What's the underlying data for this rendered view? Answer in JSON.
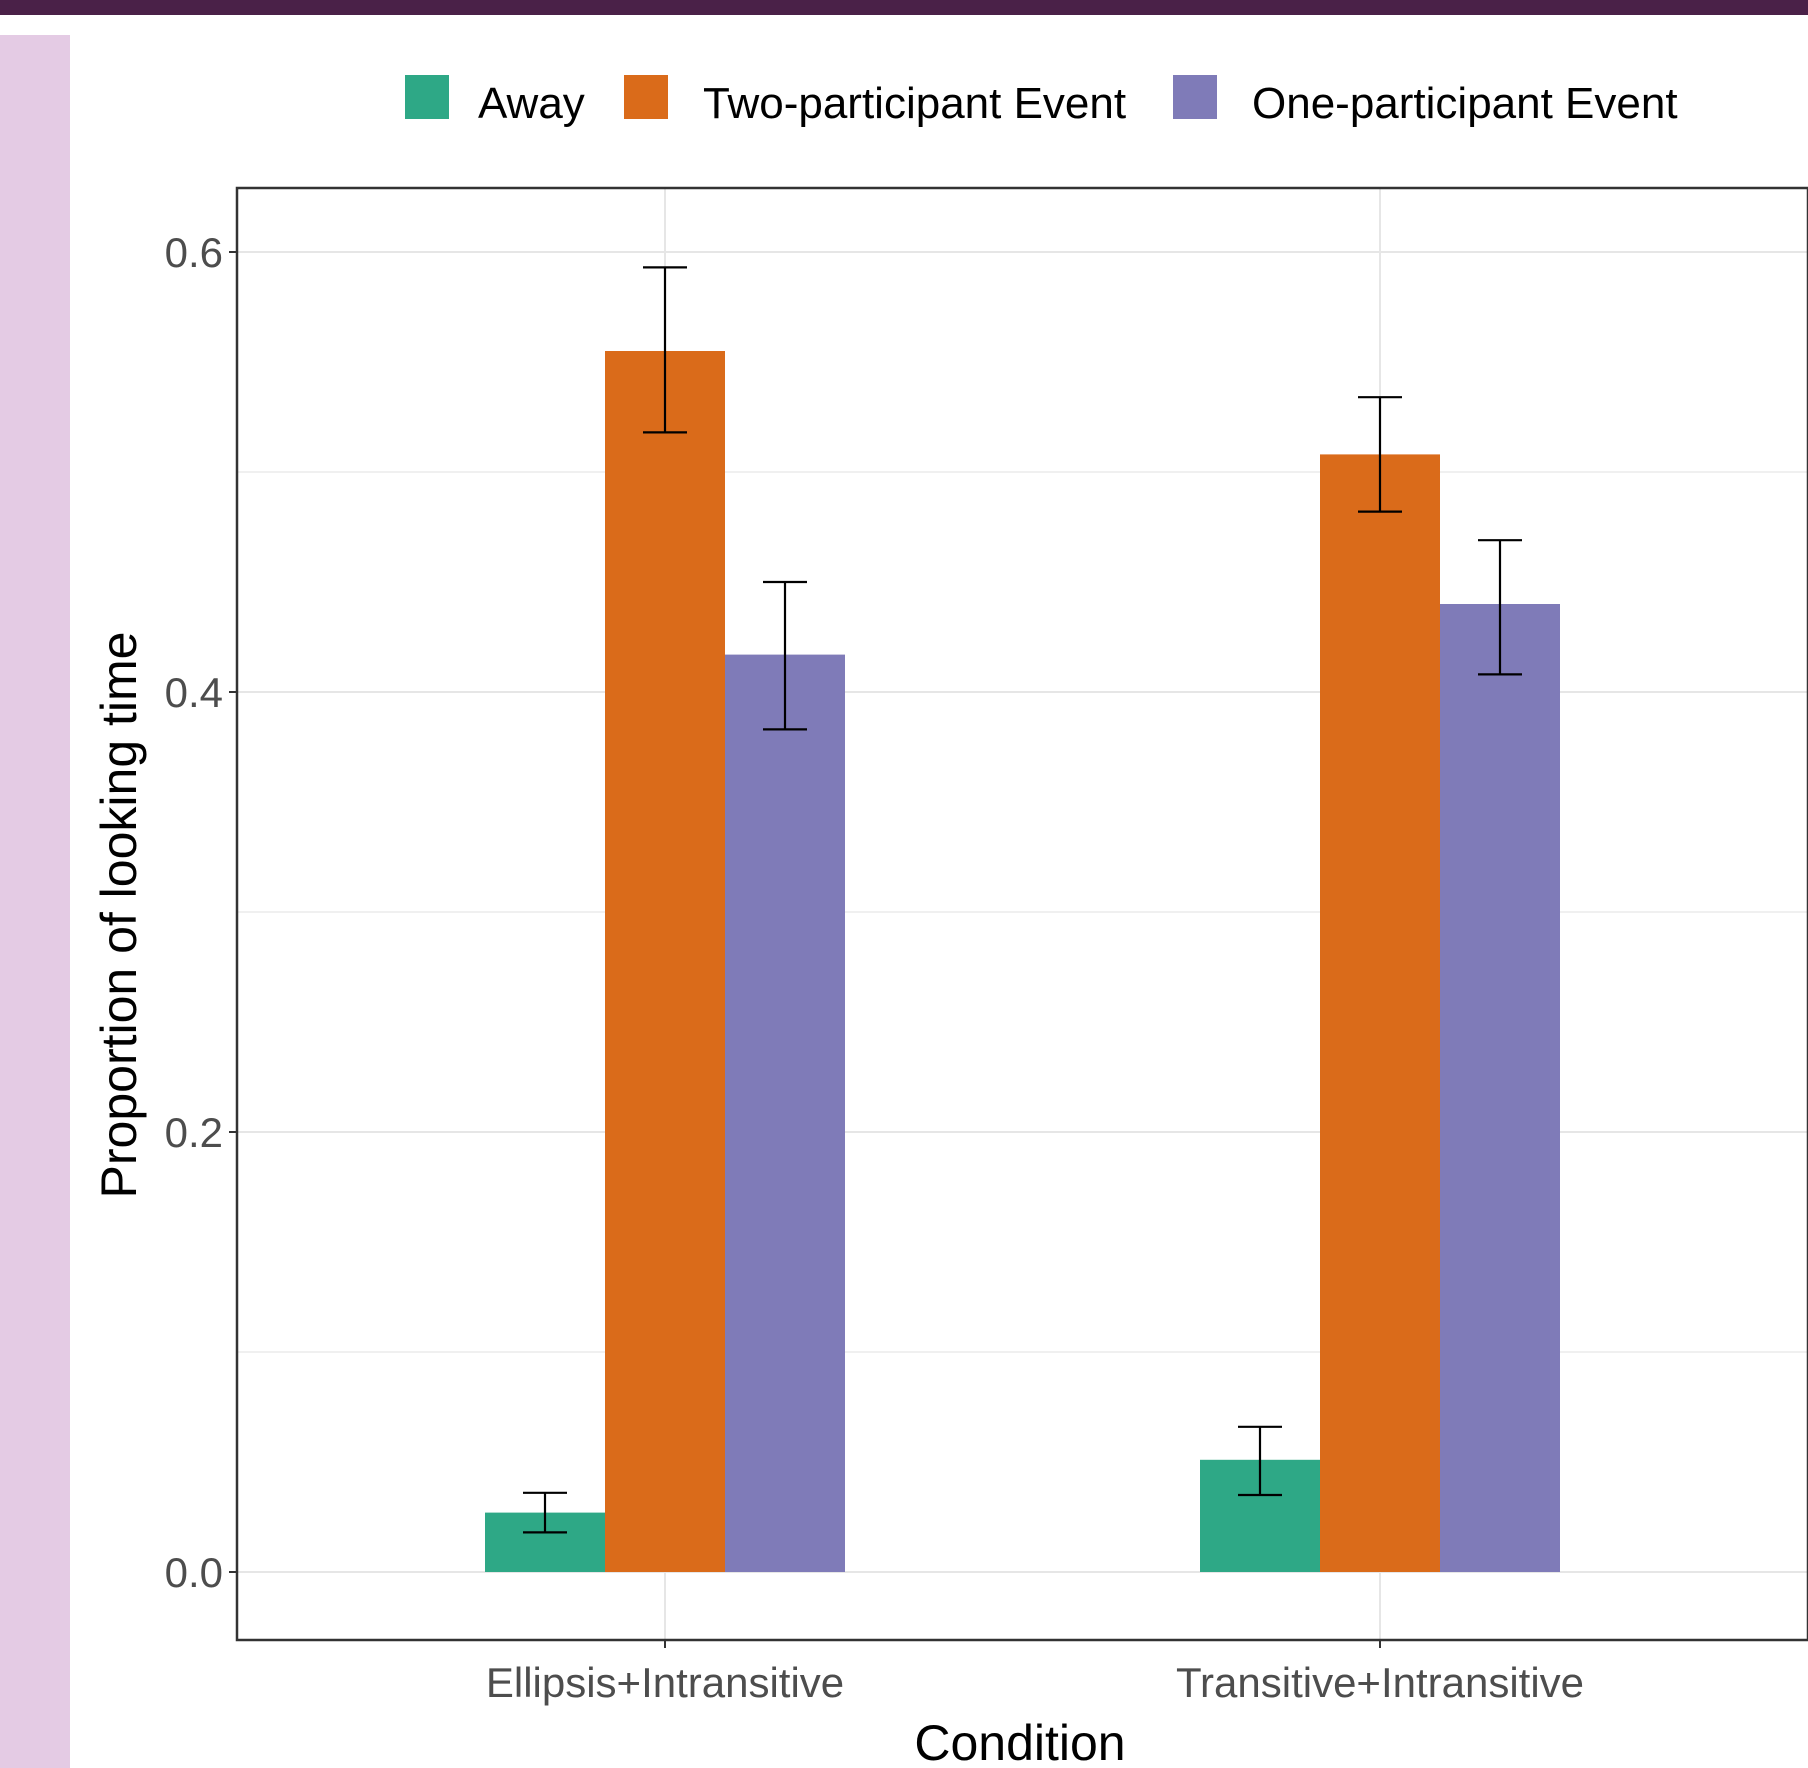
{
  "colors": {
    "top_band": "#4a2148",
    "side_panel": "#e4cbe4",
    "away": "#2ea886",
    "two_participant": "#da6b1a",
    "one_participant": "#7f7bb8",
    "error_bar": "#000000",
    "grid": "#e6e6e6",
    "tick_text": "#4d4d4d"
  },
  "chart_data": {
    "type": "bar",
    "xlabel": "Condition",
    "ylabel": "Proportion of looking time",
    "categories": [
      "Ellipsis+Intransitive",
      "Transitive+Intransitive"
    ],
    "series": [
      {
        "name": "Away",
        "values": [
          0.027,
          0.051
        ],
        "error_low": [
          0.018,
          0.035
        ],
        "error_high": [
          0.036,
          0.066
        ]
      },
      {
        "name": "Two-participant Event",
        "values": [
          0.555,
          0.508
        ],
        "error_low": [
          0.518,
          0.482
        ],
        "error_high": [
          0.593,
          0.534
        ]
      },
      {
        "name": "One-participant Event",
        "values": [
          0.417,
          0.44
        ],
        "error_low": [
          0.383,
          0.408
        ],
        "error_high": [
          0.45,
          0.469
        ]
      }
    ],
    "ylim": [
      -0.03,
      0.63
    ],
    "yticks": [
      "0.0",
      "0.2",
      "0.4",
      "0.6"
    ],
    "legend_position": "top",
    "grid": true
  }
}
